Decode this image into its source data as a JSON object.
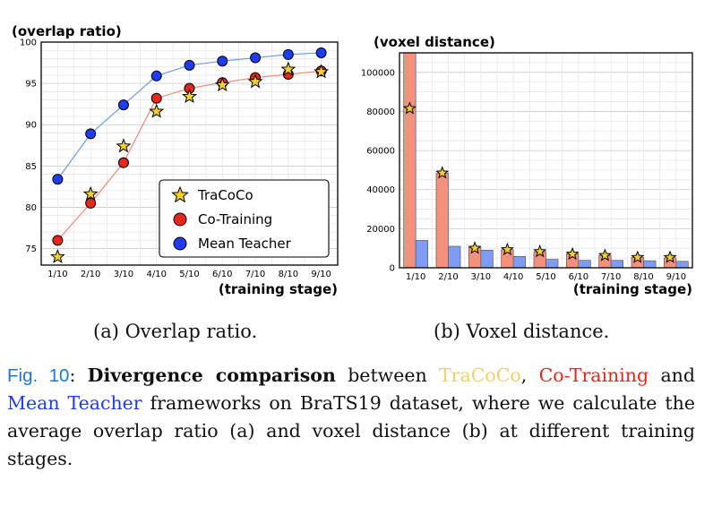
{
  "chart_data": [
    {
      "type": "line",
      "title": "(overlap ratio)",
      "xlabel": "(training stage)",
      "ylabel": "",
      "categories": [
        "1/10",
        "2/10",
        "3/10",
        "4/10",
        "5/10",
        "6/10",
        "7/10",
        "8/10",
        "9/10"
      ],
      "ylim": [
        73,
        100
      ],
      "yticks": [
        75,
        80,
        85,
        90,
        95,
        100
      ],
      "grid": true,
      "legend_position": "bottom-right",
      "series": [
        {
          "name": "TraCoCo",
          "marker": "star",
          "color": "#f5d02a",
          "line": false,
          "values": [
            74.0,
            81.6,
            87.4,
            91.6,
            93.4,
            94.8,
            95.2,
            96.7,
            96.4
          ]
        },
        {
          "name": "Co-Training",
          "marker": "circle",
          "color": "#e8271c",
          "line_color": "#f08a78",
          "line": true,
          "values": [
            76.0,
            80.5,
            85.4,
            93.2,
            94.4,
            95.1,
            95.7,
            96.1,
            96.5
          ]
        },
        {
          "name": "Mean Teacher",
          "marker": "circle",
          "color": "#1e3df0",
          "line_color": "#6c9ce0",
          "line": true,
          "values": [
            83.4,
            88.9,
            92.4,
            95.9,
            97.2,
            97.7,
            98.1,
            98.5,
            98.7
          ]
        }
      ]
    },
    {
      "type": "bar",
      "title": "(voxel distance)",
      "xlabel": "(training stage)",
      "ylabel": "",
      "categories": [
        "1/10",
        "2/10",
        "3/10",
        "4/10",
        "5/10",
        "6/10",
        "7/10",
        "8/10",
        "9/10"
      ],
      "ylim": [
        0,
        110000
      ],
      "yticks": [
        0,
        20000,
        40000,
        60000,
        80000,
        100000
      ],
      "grid": true,
      "series": [
        {
          "name": "Co-Training",
          "color": "#f4907e",
          "values": [
            110000,
            48500,
            10500,
            9300,
            8300,
            7200,
            6300,
            5300,
            5100
          ]
        },
        {
          "name": "Mean Teacher",
          "color": "#7f9cf2",
          "values": [
            14000,
            11000,
            9000,
            5800,
            4300,
            3800,
            3800,
            3600,
            3300
          ]
        },
        {
          "name": "TraCoCo",
          "marker": "star",
          "color": "#f5d02a",
          "values": [
            81500,
            48500,
            10000,
            9300,
            8300,
            7000,
            6300,
            5300,
            5300
          ]
        }
      ]
    }
  ],
  "subcaptions": {
    "a": "(a) Overlap ratio.",
    "b": "(b) Voxel distance."
  },
  "caption": {
    "label": "Fig. 10",
    "colon": ": ",
    "bold": "Divergence comparison",
    "t1": " between ",
    "m1": "TraCoCo",
    "t2": ", ",
    "m2": "Co-Training",
    "t3": " and ",
    "m3": "Mean Teacher",
    "t4": " frameworks on BraTS19 dataset, where we calculate the average overlap ratio (a) and voxel distance (b) at different training stages.",
    "label_color": "#1f77d0",
    "m1_color": "#f2cf6e",
    "m2_color": "#e8271c",
    "m3_color": "#1e3df0"
  }
}
